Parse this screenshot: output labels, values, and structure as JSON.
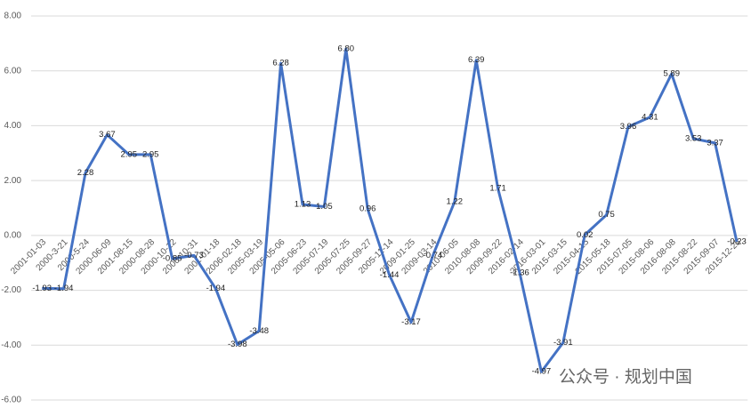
{
  "chart_data": {
    "type": "line",
    "categories": [
      "2001-01-03",
      "2000-3-21",
      "2000-5-24",
      "2000-06-09",
      "2001-08-15",
      "2000-08-28",
      "2000-10-12",
      "2000-10-31",
      "2001-01-18",
      "2006-02-18",
      "2005-03-19",
      "2005-05-06",
      "2005-06-23",
      "2005-07-19",
      "2005-07-25",
      "2005-09-27",
      "2005-11-14",
      "2009-01-25",
      "2009-03-14",
      "2010-06-05",
      "2010-08-08",
      "2009-09-22",
      "2016-02-14",
      "2016-03-01",
      "2015-03-15",
      "2015-04-15",
      "2015-05-18",
      "2015-07-05",
      "2015-08-06",
      "2016-08-08",
      "2015-08-22",
      "2015-09-07",
      "2015-12-28"
    ],
    "series": [
      {
        "color": "#4472c4",
        "values": [
          -1.93,
          -1.94,
          2.28,
          3.67,
          2.95,
          2.95,
          -0.85,
          -0.73,
          -1.94,
          -3.98,
          -3.48,
          6.28,
          1.13,
          1.05,
          6.8,
          0.96,
          -1.44,
          -3.17,
          -0.74,
          1.22,
          6.39,
          1.71,
          -1.36,
          -4.97,
          -3.91,
          0.02,
          0.75,
          3.96,
          4.31,
          5.89,
          3.53,
          3.37,
          -0.23
        ],
        "value_labels": [
          "-1.93",
          "-1.94",
          "2.28",
          "3.67",
          "2.95",
          "2.95",
          "-0.85",
          "-0.73",
          "-1.94",
          "-3.98",
          "-3.48",
          "6.28",
          "1.13",
          "1.05",
          "6.80",
          "0.96",
          "-1.44",
          "-3.17",
          "-0.74",
          "1.22",
          "6.39",
          "1.71",
          "-1.36",
          "-4.97",
          "-3.91",
          "0.02",
          "0.75",
          "3.96",
          "4.31",
          "5.89",
          "3.53",
          "3.37",
          "-0.23"
        ]
      }
    ],
    "ylim": [
      -6,
      8
    ],
    "yticks": [
      {
        "value": -6,
        "label": "-6.00"
      },
      {
        "value": -4,
        "label": "-4.00"
      },
      {
        "value": -2,
        "label": "-2.00"
      },
      {
        "value": 0,
        "label": "0.00"
      },
      {
        "value": 2,
        "label": "2.00"
      },
      {
        "value": 4,
        "label": "4.00"
      },
      {
        "value": 6,
        "label": "6.00"
      },
      {
        "value": 8,
        "label": "8.00"
      }
    ],
    "grid": true,
    "watermark": "公众号 · 规划中国"
  }
}
